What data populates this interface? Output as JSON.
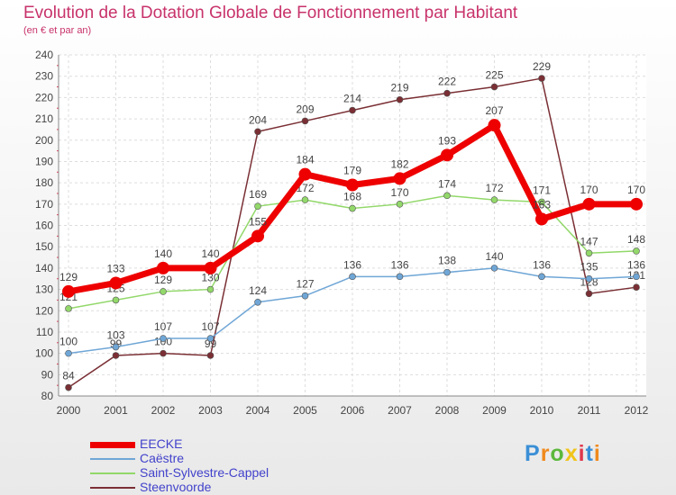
{
  "header": {
    "title": "Evolution de la Dotation Globale de Fonctionnement par Habitant",
    "subtitle": "(en € et par an)"
  },
  "chart_data": {
    "type": "line",
    "title": "Evolution de la Dotation Globale de Fonctionnement par Habitant",
    "subtitle": "(en € et par an)",
    "xlabel": "",
    "ylabel": "",
    "x": [
      "2000",
      "2001",
      "2002",
      "2003",
      "2004",
      "2005",
      "2006",
      "2007",
      "2008",
      "2009",
      "2010",
      "2011",
      "2012"
    ],
    "ylim": [
      80,
      240
    ],
    "yticks": [
      80,
      90,
      100,
      110,
      120,
      130,
      140,
      150,
      160,
      170,
      180,
      190,
      200,
      210,
      220,
      230,
      240
    ],
    "grid": true,
    "legend_position": "bottom-left",
    "series": [
      {
        "name": "EECKE",
        "color": "#ee0000",
        "values": [
          129,
          133,
          140,
          140,
          155,
          184,
          179,
          182,
          193,
          207,
          163,
          170,
          170
        ]
      },
      {
        "name": "Caëstre",
        "color": "#6fa6d6",
        "values": [
          100,
          103,
          107,
          107,
          124,
          127,
          136,
          136,
          138,
          140,
          136,
          135,
          136
        ]
      },
      {
        "name": "Saint-Sylvestre-Cappel",
        "color": "#92d86a",
        "values": [
          121,
          125,
          129,
          130,
          169,
          172,
          168,
          170,
          174,
          172,
          171,
          147,
          148
        ]
      },
      {
        "name": "Steenvoorde",
        "color": "#7a2f34",
        "values": [
          84,
          99,
          100,
          99,
          204,
          209,
          214,
          219,
          222,
          225,
          229,
          128,
          131
        ]
      }
    ]
  },
  "logo": {
    "letters": [
      "P",
      "r",
      "o",
      "x",
      "i",
      "t",
      "i"
    ],
    "colors": [
      "#3b8fd6",
      "#f08a1c",
      "#5cb83c",
      "#f0c419",
      "#e0384c",
      "#3b8fd6",
      "#f08a1c"
    ]
  }
}
